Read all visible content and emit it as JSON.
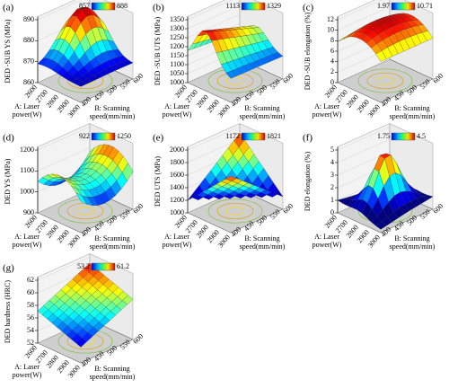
{
  "panels": [
    {
      "label": "(a)",
      "z_label": "DED -SUB YS (MPa)",
      "z_ticks": [
        860,
        870,
        880,
        890
      ],
      "colorbar": [
        857,
        888
      ],
      "x_label": [
        "A: Laser",
        "power(W)"
      ],
      "x_ticks": [
        2600,
        2700,
        2800,
        2900,
        3000
      ],
      "y_label": [
        "B: Scanning",
        "speed(mm/min)"
      ],
      "y_ticks": [
        400,
        450,
        500,
        550,
        600
      ]
    },
    {
      "label": "(b)",
      "z_label": "DED -SUB UTS (MPa)",
      "z_ticks": [
        1000,
        1050,
        1100,
        1150,
        1200,
        1250,
        1300,
        1350
      ],
      "colorbar": [
        1113,
        1329
      ],
      "x_label": [
        "A: Laser",
        "power(W)"
      ],
      "x_ticks": [
        2600,
        2700,
        2800,
        2900,
        3000
      ],
      "y_label": [
        "B: Scanning",
        "speed(mm/min)"
      ],
      "y_ticks": [
        400,
        450,
        500,
        550,
        600
      ]
    },
    {
      "label": "(c)",
      "z_label": "DED -SUB elongation (%)",
      "z_ticks": [
        0,
        2,
        4,
        6,
        8,
        10,
        12
      ],
      "colorbar": [
        1.97,
        10.71
      ],
      "x_label": [
        "A: Laser",
        "power(W)"
      ],
      "x_ticks": [
        2600,
        2700,
        2800,
        2900,
        3000
      ],
      "y_label": [
        "B: Scanning",
        "speed(mm/min)"
      ],
      "y_ticks": [
        400,
        450,
        500,
        550,
        600
      ]
    },
    {
      "label": "(d)",
      "z_label": "DED YS (MPa)",
      "z_ticks": [
        900,
        1000,
        1100,
        1200
      ],
      "colorbar": [
        922,
        1250
      ],
      "x_label": [
        "A: Laser",
        "power(W)"
      ],
      "x_ticks": [
        2600,
        2700,
        2800,
        2900,
        3000
      ],
      "y_label": [
        "B: Scanning",
        "speed(mm/min)"
      ],
      "y_ticks": [
        400,
        450,
        500,
        550,
        600
      ]
    },
    {
      "label": "(e)",
      "z_label": "DED UTS (MPa)",
      "z_ticks": [
        1000,
        1200,
        1400,
        1600,
        1800,
        2000
      ],
      "colorbar": [
        1172,
        1821
      ],
      "x_label": [
        "A: Laser",
        "power(W)"
      ],
      "x_ticks": [
        2600,
        2700,
        2800,
        2900,
        3000
      ],
      "y_label": [
        "B: Scanning",
        "speed(mm/min)"
      ],
      "y_ticks": [
        400,
        450,
        500,
        550,
        600
      ]
    },
    {
      "label": "(f)",
      "z_label": "DED elongation (%)",
      "z_ticks": [
        0,
        1,
        2,
        3,
        4,
        5
      ],
      "colorbar": [
        1.75,
        4.5
      ],
      "x_label": [
        "A: Laser",
        "power(W)"
      ],
      "x_ticks": [
        2600,
        2700,
        2800,
        2900,
        3000
      ],
      "y_label": [
        "B: Scanning",
        "speed(mm/min)"
      ],
      "y_ticks": [
        400,
        450,
        500,
        550,
        600
      ]
    },
    {
      "label": "(g)",
      "z_label": "DED hardness (HRC)",
      "z_ticks": [
        52,
        54,
        56,
        58,
        60,
        62
      ],
      "colorbar": [
        53.2,
        61.2
      ],
      "x_label": [
        "A: Laser",
        "power(W)"
      ],
      "x_ticks": [
        2600,
        2700,
        2800,
        2900,
        3000
      ],
      "y_label": [
        "B: Scanning",
        "speed(mm/min)"
      ],
      "y_ticks": [
        400,
        450,
        500,
        550,
        600
      ]
    }
  ]
}
